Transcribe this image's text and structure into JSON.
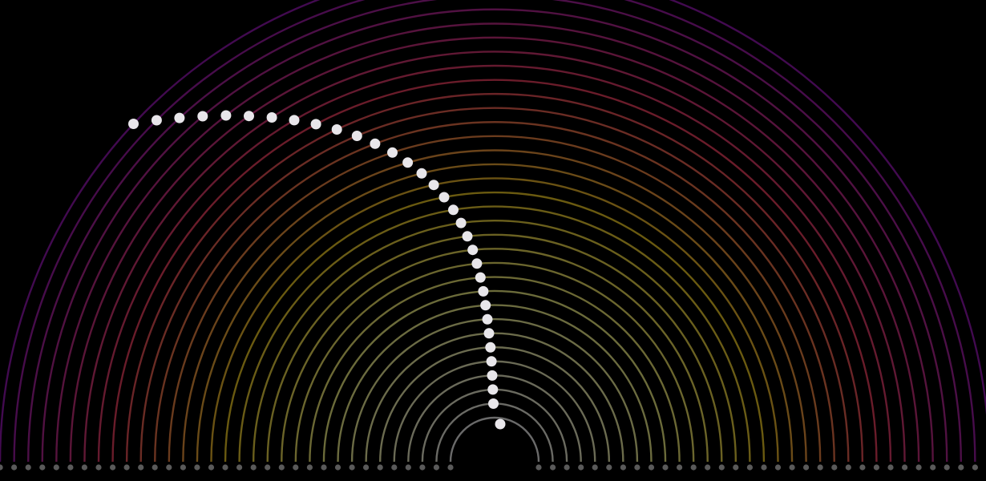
{
  "visualization": {
    "background": "#000000",
    "arc_count": 33,
    "dot_color": "#e8e6ea",
    "base_dot_color": "#5a5a5a",
    "arc_colors": {
      "inner": "#6a6a6a",
      "mid_low": "#6b6b3a",
      "mid": "#6a5a10",
      "mid_high": "#6a1c2a",
      "outer": "#420a50"
    },
    "pendulum_angles_deg": [
      -1.0,
      -1.2,
      -1.4,
      -1.6,
      -1.8,
      -2.1,
      -2.5,
      -2.9,
      -3.3,
      -3.8,
      -4.4,
      -5.1,
      -5.9,
      -6.9,
      -8.0,
      -9.3,
      -10.8,
      -12.4,
      -14.2,
      -16.2,
      -18.3,
      -20.6,
      -22.9,
      -25.4,
      -27.9,
      -30.4,
      -32.9,
      -35.4,
      -37.8,
      -40.2,
      -42.5,
      -44.7,
      -46.9
    ]
  }
}
